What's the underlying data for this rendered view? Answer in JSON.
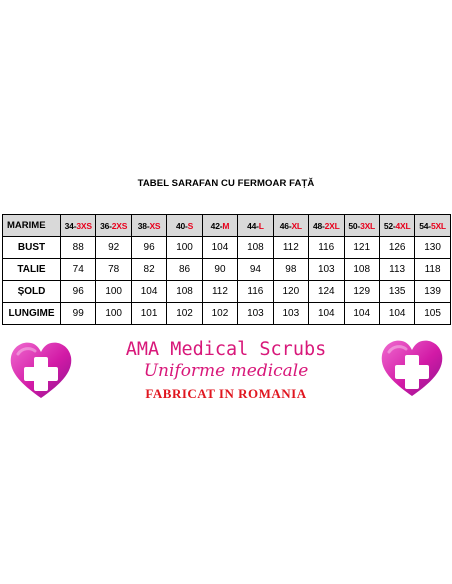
{
  "title": "TABEL SARAFAN CU FERMOAR FAȚĂ",
  "table": {
    "corner_label": "MARIME",
    "size_headers": [
      {
        "num": "34-",
        "letter": "3XS"
      },
      {
        "num": "36-",
        "letter": "2XS"
      },
      {
        "num": "38-",
        "letter": "XS"
      },
      {
        "num": "40-",
        "letter": "S"
      },
      {
        "num": "42-",
        "letter": "M"
      },
      {
        "num": "44-",
        "letter": "L"
      },
      {
        "num": "46-",
        "letter": "XL"
      },
      {
        "num": "48-",
        "letter": "2XL"
      },
      {
        "num": "50-",
        "letter": "3XL"
      },
      {
        "num": "52-",
        "letter": "4XL"
      },
      {
        "num": "54-",
        "letter": "5XL"
      }
    ],
    "rows": [
      {
        "label": "BUST",
        "values": [
          "88",
          "92",
          "96",
          "100",
          "104",
          "108",
          "112",
          "116",
          "121",
          "126",
          "130"
        ]
      },
      {
        "label": "TALIE",
        "values": [
          "74",
          "78",
          "82",
          "86",
          "90",
          "94",
          "98",
          "103",
          "108",
          "113",
          "118"
        ]
      },
      {
        "label": "ȘOLD",
        "values": [
          "96",
          "100",
          "104",
          "108",
          "112",
          "116",
          "120",
          "124",
          "129",
          "135",
          "139"
        ]
      },
      {
        "label": "LUNGIME",
        "values": [
          "99",
          "100",
          "101",
          "102",
          "102",
          "103",
          "103",
          "104",
          "104",
          "104",
          "105"
        ]
      }
    ]
  },
  "brand": {
    "name": "AMA Medical Scrubs",
    "subtitle": "Uniforme medicale",
    "made_in": "FABRICAT IN ROMANIA"
  },
  "colors": {
    "brand_pink": "#d8187a",
    "size_red": "#e8001c",
    "made_in_red": "#e0161f",
    "header_gray": "#d9d9d9"
  },
  "icons": [
    "heart-cross-logo",
    "heart-cross-logo"
  ]
}
